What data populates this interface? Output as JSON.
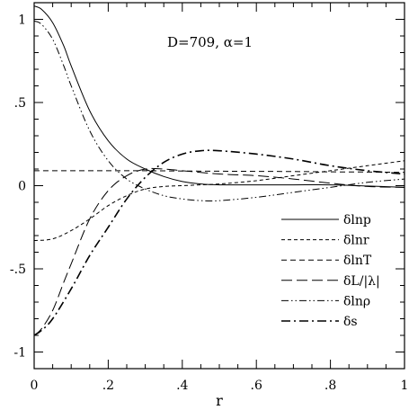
{
  "chart_data": {
    "type": "line",
    "title": "",
    "annotation": "D=709,  α=1",
    "xlabel": "r",
    "ylabel": "",
    "xlim": [
      0,
      1
    ],
    "ylim": [
      -1.1,
      1.1
    ],
    "x_ticks": [
      {
        "value": 0,
        "label": "0"
      },
      {
        "value": 0.2,
        "label": ".2"
      },
      {
        "value": 0.4,
        "label": ".4"
      },
      {
        "value": 0.6,
        "label": ".6"
      },
      {
        "value": 0.8,
        "label": ".8"
      },
      {
        "value": 1,
        "label": "1"
      }
    ],
    "y_ticks": [
      {
        "value": 1,
        "label": "1"
      },
      {
        "value": 0.5,
        "label": ".5"
      },
      {
        "value": 0,
        "label": "0"
      },
      {
        "value": -0.5,
        "label": "-.5"
      },
      {
        "value": -1,
        "label": "-1"
      }
    ],
    "grid": false,
    "legend_position": "bottom-right",
    "series": [
      {
        "name": "δlnp",
        "style": "solid",
        "points": [
          [
            0,
            1.08
          ],
          [
            0.02,
            1.06
          ],
          [
            0.05,
            0.98
          ],
          [
            0.08,
            0.84
          ],
          [
            0.1,
            0.72
          ],
          [
            0.15,
            0.45
          ],
          [
            0.2,
            0.27
          ],
          [
            0.25,
            0.16
          ],
          [
            0.3,
            0.1
          ],
          [
            0.35,
            0.055
          ],
          [
            0.4,
            0.025
          ],
          [
            0.45,
            0.01
          ],
          [
            0.5,
            0.005
          ],
          [
            0.6,
            0.005
          ],
          [
            0.7,
            0.005
          ],
          [
            0.8,
            0.005
          ],
          [
            0.9,
            -0.002
          ],
          [
            1,
            -0.01
          ]
        ]
      },
      {
        "name": "δlnr",
        "style": "short-dash",
        "points": [
          [
            0,
            -0.33
          ],
          [
            0.05,
            -0.32
          ],
          [
            0.1,
            -0.27
          ],
          [
            0.15,
            -0.2
          ],
          [
            0.2,
            -0.12
          ],
          [
            0.25,
            -0.06
          ],
          [
            0.3,
            -0.02
          ],
          [
            0.35,
            -0.005
          ],
          [
            0.4,
            0.0
          ],
          [
            0.45,
            0.005
          ],
          [
            0.5,
            0.01
          ],
          [
            0.6,
            0.03
          ],
          [
            0.7,
            0.06
          ],
          [
            0.8,
            0.09
          ],
          [
            0.9,
            0.12
          ],
          [
            1,
            0.15
          ]
        ]
      },
      {
        "name": "δlnT",
        "style": "medium-dash",
        "points": [
          [
            0,
            0.09
          ],
          [
            0.1,
            0.09
          ],
          [
            0.2,
            0.09
          ],
          [
            0.3,
            0.09
          ],
          [
            0.4,
            0.088
          ],
          [
            0.5,
            0.087
          ],
          [
            0.6,
            0.086
          ],
          [
            0.7,
            0.085
          ],
          [
            0.8,
            0.083
          ],
          [
            0.9,
            0.082
          ],
          [
            1,
            0.08
          ]
        ]
      },
      {
        "name": "δL/|λ|",
        "style": "long-dash",
        "points": [
          [
            0,
            -0.9
          ],
          [
            0.02,
            -0.86
          ],
          [
            0.05,
            -0.75
          ],
          [
            0.08,
            -0.58
          ],
          [
            0.1,
            -0.47
          ],
          [
            0.15,
            -0.2
          ],
          [
            0.2,
            -0.03
          ],
          [
            0.25,
            0.06
          ],
          [
            0.3,
            0.1
          ],
          [
            0.35,
            0.1
          ],
          [
            0.4,
            0.09
          ],
          [
            0.5,
            0.07
          ],
          [
            0.6,
            0.06
          ],
          [
            0.7,
            0.04
          ],
          [
            0.8,
            0.015
          ],
          [
            0.9,
            -0.005
          ],
          [
            1,
            -0.01
          ]
        ]
      },
      {
        "name": "δlnρ",
        "style": "dash-dot-dot",
        "points": [
          [
            0,
            0.99
          ],
          [
            0.02,
            0.97
          ],
          [
            0.05,
            0.88
          ],
          [
            0.08,
            0.72
          ],
          [
            0.1,
            0.6
          ],
          [
            0.15,
            0.33
          ],
          [
            0.2,
            0.15
          ],
          [
            0.25,
            0.04
          ],
          [
            0.3,
            -0.02
          ],
          [
            0.35,
            -0.06
          ],
          [
            0.4,
            -0.08
          ],
          [
            0.45,
            -0.09
          ],
          [
            0.5,
            -0.09
          ],
          [
            0.6,
            -0.07
          ],
          [
            0.7,
            -0.04
          ],
          [
            0.8,
            -0.01
          ],
          [
            0.9,
            0.02
          ],
          [
            1,
            0.04
          ]
        ]
      },
      {
        "name": "δs",
        "style": "dash-dot",
        "points": [
          [
            0,
            -0.9
          ],
          [
            0.02,
            -0.87
          ],
          [
            0.05,
            -0.8
          ],
          [
            0.1,
            -0.62
          ],
          [
            0.15,
            -0.42
          ],
          [
            0.2,
            -0.25
          ],
          [
            0.25,
            -0.08
          ],
          [
            0.3,
            0.05
          ],
          [
            0.35,
            0.14
          ],
          [
            0.4,
            0.19
          ],
          [
            0.45,
            0.21
          ],
          [
            0.5,
            0.21
          ],
          [
            0.6,
            0.19
          ],
          [
            0.7,
            0.16
          ],
          [
            0.8,
            0.12
          ],
          [
            0.9,
            0.09
          ],
          [
            1,
            0.07
          ]
        ]
      }
    ]
  }
}
